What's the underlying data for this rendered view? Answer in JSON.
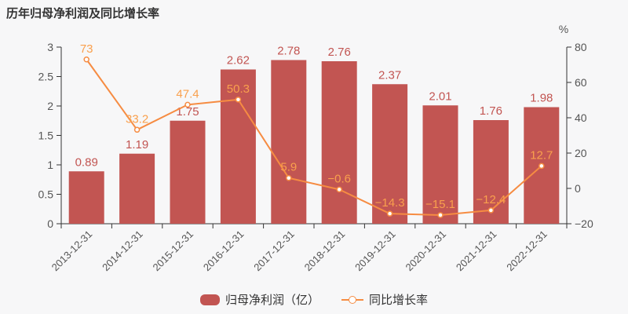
{
  "title": "历年归母净利润及同比增长率",
  "legend": {
    "items": [
      {
        "label": "归母净利润（亿）",
        "marker": "bar"
      },
      {
        "label": "同比增长率",
        "marker": "line"
      }
    ]
  },
  "colors": {
    "bar": "#c25552",
    "bar_label": "#c25552",
    "line": "#f68c42",
    "line_label": "#f9a04d",
    "axis_line": "#333333",
    "tick_label": "#555555",
    "background": "#f7f7f8"
  },
  "chart_data": {
    "type": "combo",
    "title": "历年归母净利润及同比增长率",
    "grid": false,
    "legend_position": "bottom",
    "categories": [
      "2013-12-31",
      "2014-12-31",
      "2015-12-31",
      "2016-12-31",
      "2017-12-31",
      "2018-12-31",
      "2019-12-31",
      "2020-12-31",
      "2021-12-31",
      "2022-12-31"
    ],
    "series": [
      {
        "name": "归母净利润（亿）",
        "type": "bar",
        "axis": "left",
        "values": [
          0.89,
          1.19,
          1.75,
          2.62,
          2.78,
          2.76,
          2.37,
          2.01,
          1.76,
          1.98
        ],
        "labels": [
          "0.89",
          "1.19",
          "1.75",
          "2.62",
          "2.78",
          "2.76",
          "2.37",
          "2.01",
          "1.76",
          "1.98"
        ]
      },
      {
        "name": "同比增长率",
        "type": "line",
        "axis": "right",
        "values": [
          73,
          33.2,
          47.4,
          50.3,
          5.9,
          -0.6,
          -14.3,
          -15.1,
          -12.4,
          12.7
        ],
        "labels": [
          "73",
          "33.2",
          "47.4",
          "50.3",
          "5.9",
          "−0.6",
          "−14.3",
          "−15.1",
          "−12.4",
          "12.7"
        ]
      }
    ],
    "left_axis": {
      "min": 0,
      "max": 3,
      "step": 0.5,
      "labels": [
        "0",
        "0.5",
        "1",
        "1.5",
        "2",
        "2.5",
        "3"
      ]
    },
    "right_axis": {
      "min": -20,
      "max": 80,
      "step": 20,
      "labels": [
        "−20",
        "0",
        "20",
        "40",
        "60",
        "80"
      ],
      "unit": "%"
    }
  }
}
